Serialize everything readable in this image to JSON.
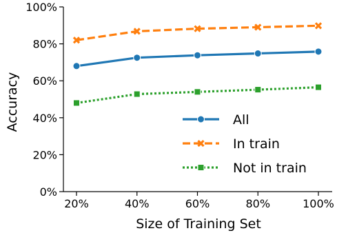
{
  "chart_data": {
    "type": "line",
    "title": "",
    "xlabel": "Size of Training Set",
    "ylabel": "Accuracy",
    "categories": [
      "20%",
      "40%",
      "60%",
      "80%",
      "100%"
    ],
    "x": [
      20,
      40,
      60,
      80,
      100
    ],
    "ylim": [
      0,
      100
    ],
    "yticks": [
      0,
      20,
      40,
      60,
      80,
      100
    ],
    "ytick_labels": [
      "0%",
      "20%",
      "40%",
      "60%",
      "80%",
      "100%"
    ],
    "grid": false,
    "legend": "bottom-right",
    "series": [
      {
        "name": "All",
        "values": [
          68,
          72.5,
          73.8,
          74.8,
          75.8
        ],
        "color": "#1f77b4",
        "marker": "circle",
        "linestyle": "solid"
      },
      {
        "name": "In train",
        "values": [
          82,
          86.8,
          88.2,
          89,
          89.8
        ],
        "color": "#ff7f0e",
        "marker": "x",
        "linestyle": "dashed"
      },
      {
        "name": "Not in train",
        "values": [
          48,
          52.8,
          54,
          55.2,
          56.5
        ],
        "color": "#2ca02c",
        "marker": "square",
        "linestyle": "dotted"
      }
    ]
  }
}
